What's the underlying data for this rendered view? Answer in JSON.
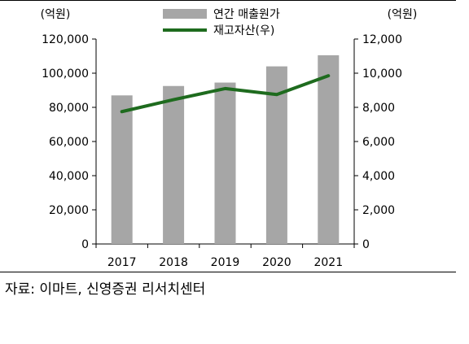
{
  "chart_data": {
    "type": "bar",
    "categories": [
      "2017",
      "2018",
      "2019",
      "2020",
      "2021"
    ],
    "series": [
      {
        "name": "연간 매출원가",
        "type": "bar",
        "axis": "left",
        "color": "#a6a6a6",
        "values": [
          87000,
          92500,
          94500,
          104000,
          110500
        ]
      },
      {
        "name": "재고자산(우)",
        "type": "line",
        "axis": "right",
        "color": "#1e6b1e",
        "values": [
          7750,
          8450,
          9100,
          8750,
          9850
        ]
      }
    ],
    "y_left": {
      "unit": "(억원)",
      "ylim": [
        0,
        120000
      ],
      "ticks": [
        "0",
        "20,000",
        "40,000",
        "60,000",
        "80,000",
        "100,000",
        "120,000"
      ],
      "tick_values": [
        0,
        20000,
        40000,
        60000,
        80000,
        100000,
        120000
      ]
    },
    "y_right": {
      "unit": "(억원)",
      "ylim": [
        0,
        12000
      ],
      "ticks": [
        "0",
        "2,000",
        "4,000",
        "6,000",
        "8,000",
        "10,000",
        "12,000"
      ],
      "tick_values": [
        0,
        2000,
        4000,
        6000,
        8000,
        10000,
        12000
      ]
    },
    "legend": "top-center",
    "grid": false
  },
  "source": "자료: 이마트, 신영증권 리서치센터"
}
